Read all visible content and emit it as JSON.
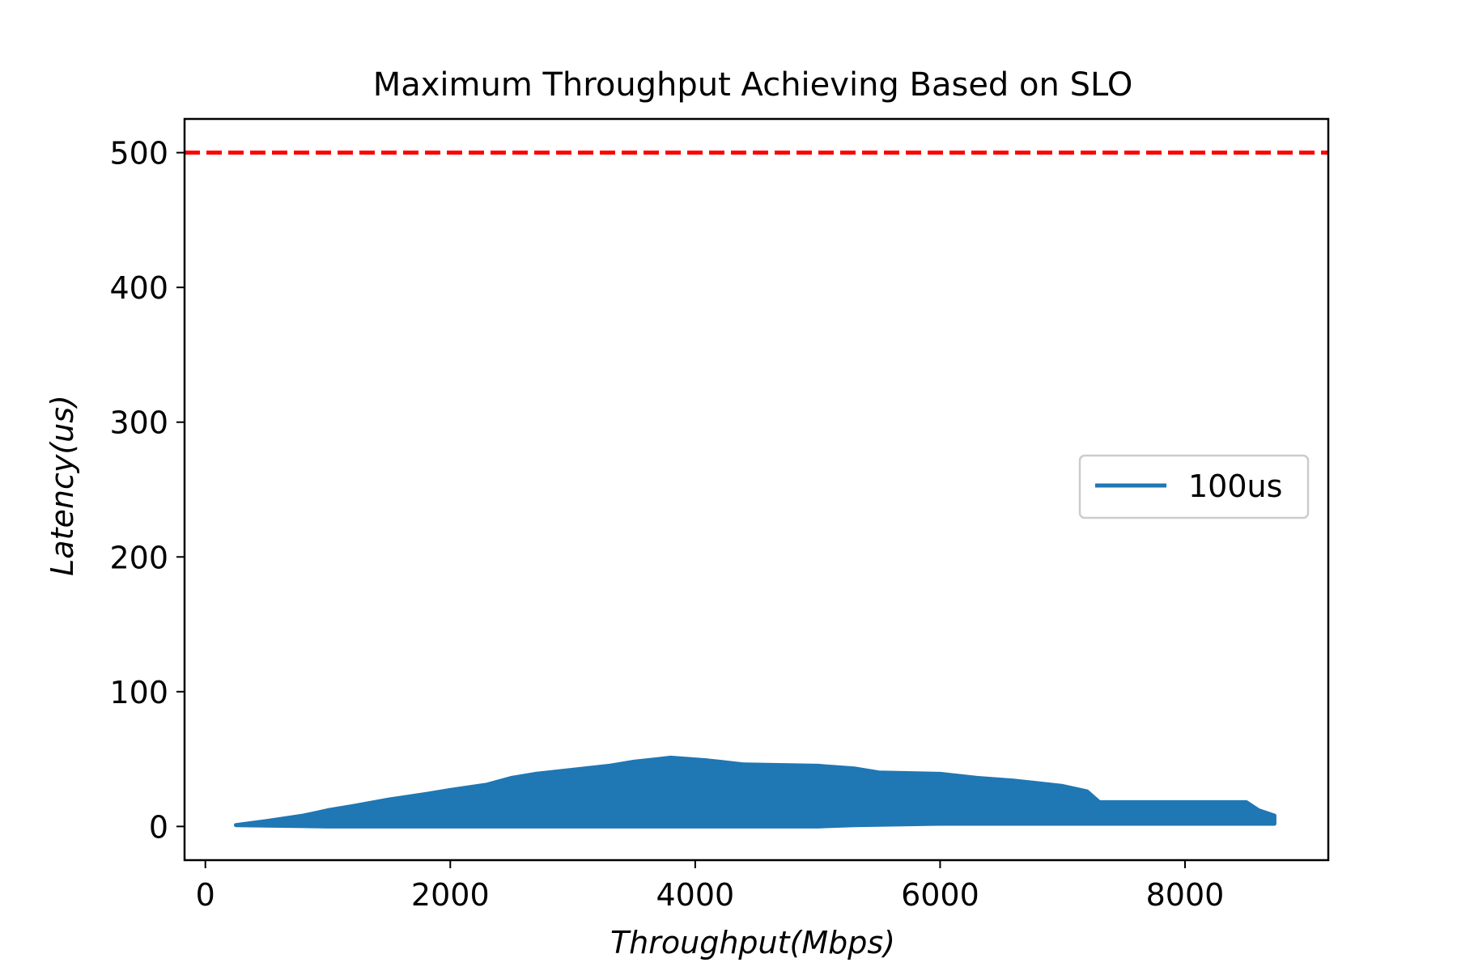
{
  "chart_data": {
    "type": "area",
    "title": "Maximum Throughput Achieving Based on SLO",
    "xlabel": "Throughput(Mbps)",
    "ylabel": "Latency(us)",
    "xlim": [
      -170,
      9170
    ],
    "ylim": [
      -25,
      525
    ],
    "xticks": [
      0,
      2000,
      4000,
      6000,
      8000
    ],
    "yticks": [
      0,
      100,
      200,
      300,
      400,
      500
    ],
    "grid": false,
    "legend": {
      "position": "center-right",
      "entries": [
        "100us"
      ]
    },
    "slo_line": {
      "y": 500,
      "color": "#ff0000",
      "style": "dashed"
    },
    "series": [
      {
        "name": "100us",
        "color": "#1f77b4",
        "upper": {
          "x": [
            250,
            500,
            800,
            1000,
            1200,
            1500,
            1800,
            2000,
            2300,
            2500,
            2700,
            3000,
            3300,
            3500,
            3700,
            3800,
            4100,
            4400,
            5000,
            5300,
            5500,
            6000,
            6300,
            6600,
            7000,
            7200,
            7300,
            8000,
            8500,
            8600,
            8730
          ],
          "y": [
            1,
            4,
            8,
            12,
            15,
            20,
            24,
            27,
            31,
            36,
            39,
            42,
            45,
            48,
            50,
            51,
            49,
            46,
            45,
            43,
            40,
            39,
            36,
            34,
            30,
            26,
            18,
            18,
            18,
            12,
            8
          ]
        },
        "lower": {
          "x": [
            8730,
            8500,
            6000,
            5300,
            5000,
            4000,
            3000,
            2000,
            1000,
            250
          ],
          "y": [
            2,
            2,
            2,
            1,
            0,
            0,
            0,
            0,
            0,
            1
          ]
        }
      }
    ]
  }
}
